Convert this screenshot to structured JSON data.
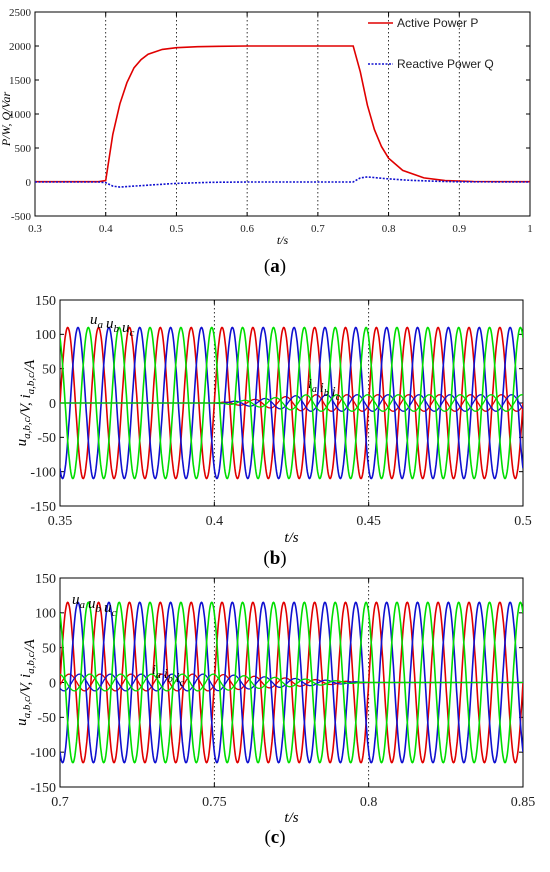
{
  "chart_data": [
    {
      "id": "a",
      "caption": "(a)",
      "type": "line",
      "xlim": [
        0.3,
        1.0
      ],
      "ylim": [
        -500,
        2500
      ],
      "xticks": [
        0.3,
        0.4,
        0.5,
        0.6,
        0.7,
        0.8,
        0.9,
        1.0
      ],
      "xtick_labels": [
        "0.3",
        "0.4",
        "0.5",
        "0.6",
        "0.7",
        "0.8",
        "0.9",
        "1"
      ],
      "yticks": [
        -500,
        0,
        500,
        1000,
        1500,
        2000,
        2500
      ],
      "ytick_labels": [
        "-500",
        "0",
        "500",
        "1000",
        "1500",
        "2000",
        "2500"
      ],
      "xlabel": "t/s",
      "ylabel": "P/W, Q/Var",
      "grid": "vertical dotted",
      "legend": "top-right",
      "series": [
        {
          "name": "Active Power P",
          "color": "#e00000",
          "style": "solid",
          "x": [
            0.3,
            0.35,
            0.39,
            0.4,
            0.41,
            0.42,
            0.43,
            0.44,
            0.45,
            0.46,
            0.48,
            0.5,
            0.53,
            0.56,
            0.6,
            0.65,
            0.7,
            0.75,
            0.76,
            0.77,
            0.78,
            0.79,
            0.8,
            0.82,
            0.85,
            0.88,
            0.92,
            1.0
          ],
          "values": [
            5,
            5,
            5,
            20,
            700,
            1150,
            1460,
            1680,
            1800,
            1880,
            1950,
            1975,
            1990,
            1995,
            2000,
            2000,
            2000,
            2000,
            1620,
            1130,
            770,
            520,
            350,
            170,
            60,
            20,
            8,
            5
          ]
        },
        {
          "name": "Reactive Power Q",
          "color": "#1010d0",
          "style": "dotted",
          "x": [
            0.3,
            0.35,
            0.39,
            0.4,
            0.41,
            0.42,
            0.44,
            0.47,
            0.5,
            0.55,
            0.6,
            0.7,
            0.75,
            0.76,
            0.77,
            0.78,
            0.8,
            0.83,
            0.87,
            0.9,
            1.0
          ],
          "values": [
            0,
            0,
            0,
            -10,
            -60,
            -75,
            -60,
            -40,
            -20,
            -5,
            0,
            0,
            0,
            60,
            75,
            65,
            45,
            25,
            10,
            3,
            0
          ]
        }
      ]
    },
    {
      "id": "b",
      "caption": "(b)",
      "type": "line",
      "xlim": [
        0.35,
        0.5
      ],
      "ylim": [
        -150,
        150
      ],
      "xticks": [
        0.35,
        0.4,
        0.45,
        0.5
      ],
      "xtick_labels": [
        "0.35",
        "0.4",
        "0.45",
        "0.5"
      ],
      "yticks": [
        -150,
        -100,
        -50,
        0,
        50,
        100,
        150
      ],
      "ytick_labels": [
        "-150",
        "-100",
        "-50",
        "0",
        "50",
        "100",
        "150"
      ],
      "xlabel": "t/s",
      "ylabel": "u_{a,b,c}/V, i_{a,b,c}/A",
      "grid": "vertical dotted",
      "waveform": {
        "frequency_hz": 100,
        "voltage_amplitude": 110,
        "current_amplitude_initial": 0,
        "current_amplitude_final": 12,
        "current_start": 0.4,
        "current_end": null,
        "ramp_time": 0.03
      },
      "phase_colors": [
        "#e00000",
        "#1010d0",
        "#00dd00"
      ],
      "voltage_label": [
        "u",
        "a",
        "u",
        "b",
        "u",
        "c"
      ],
      "current_label": [
        "i",
        "a",
        "i",
        "b",
        "i",
        "c"
      ]
    },
    {
      "id": "c",
      "caption": "(c)",
      "type": "line",
      "xlim": [
        0.7,
        0.85
      ],
      "ylim": [
        -150,
        150
      ],
      "xticks": [
        0.7,
        0.75,
        0.8,
        0.85
      ],
      "xtick_labels": [
        "0.7",
        "0.75",
        "0.8",
        "0.85"
      ],
      "yticks": [
        -150,
        -100,
        -50,
        0,
        50,
        100,
        150
      ],
      "ytick_labels": [
        "-150",
        "-100",
        "-50",
        "0",
        "50",
        "100",
        "150"
      ],
      "xlabel": "t/s",
      "ylabel": "u_{a,b,c}/V, i_{a,b,c}/A",
      "grid": "vertical dotted",
      "waveform": {
        "frequency_hz": 100,
        "voltage_amplitude": 115,
        "current_amplitude_initial": 12,
        "current_amplitude_final": 0,
        "current_start": null,
        "current_end": 0.75,
        "ramp_time": 0.05
      },
      "phase_colors": [
        "#e00000",
        "#1010d0",
        "#00dd00"
      ],
      "voltage_label": [
        "u",
        "a",
        "u",
        "b",
        "u",
        "c"
      ],
      "current_label": [
        "i",
        "a",
        "i",
        "b",
        "i",
        "c"
      ]
    }
  ]
}
